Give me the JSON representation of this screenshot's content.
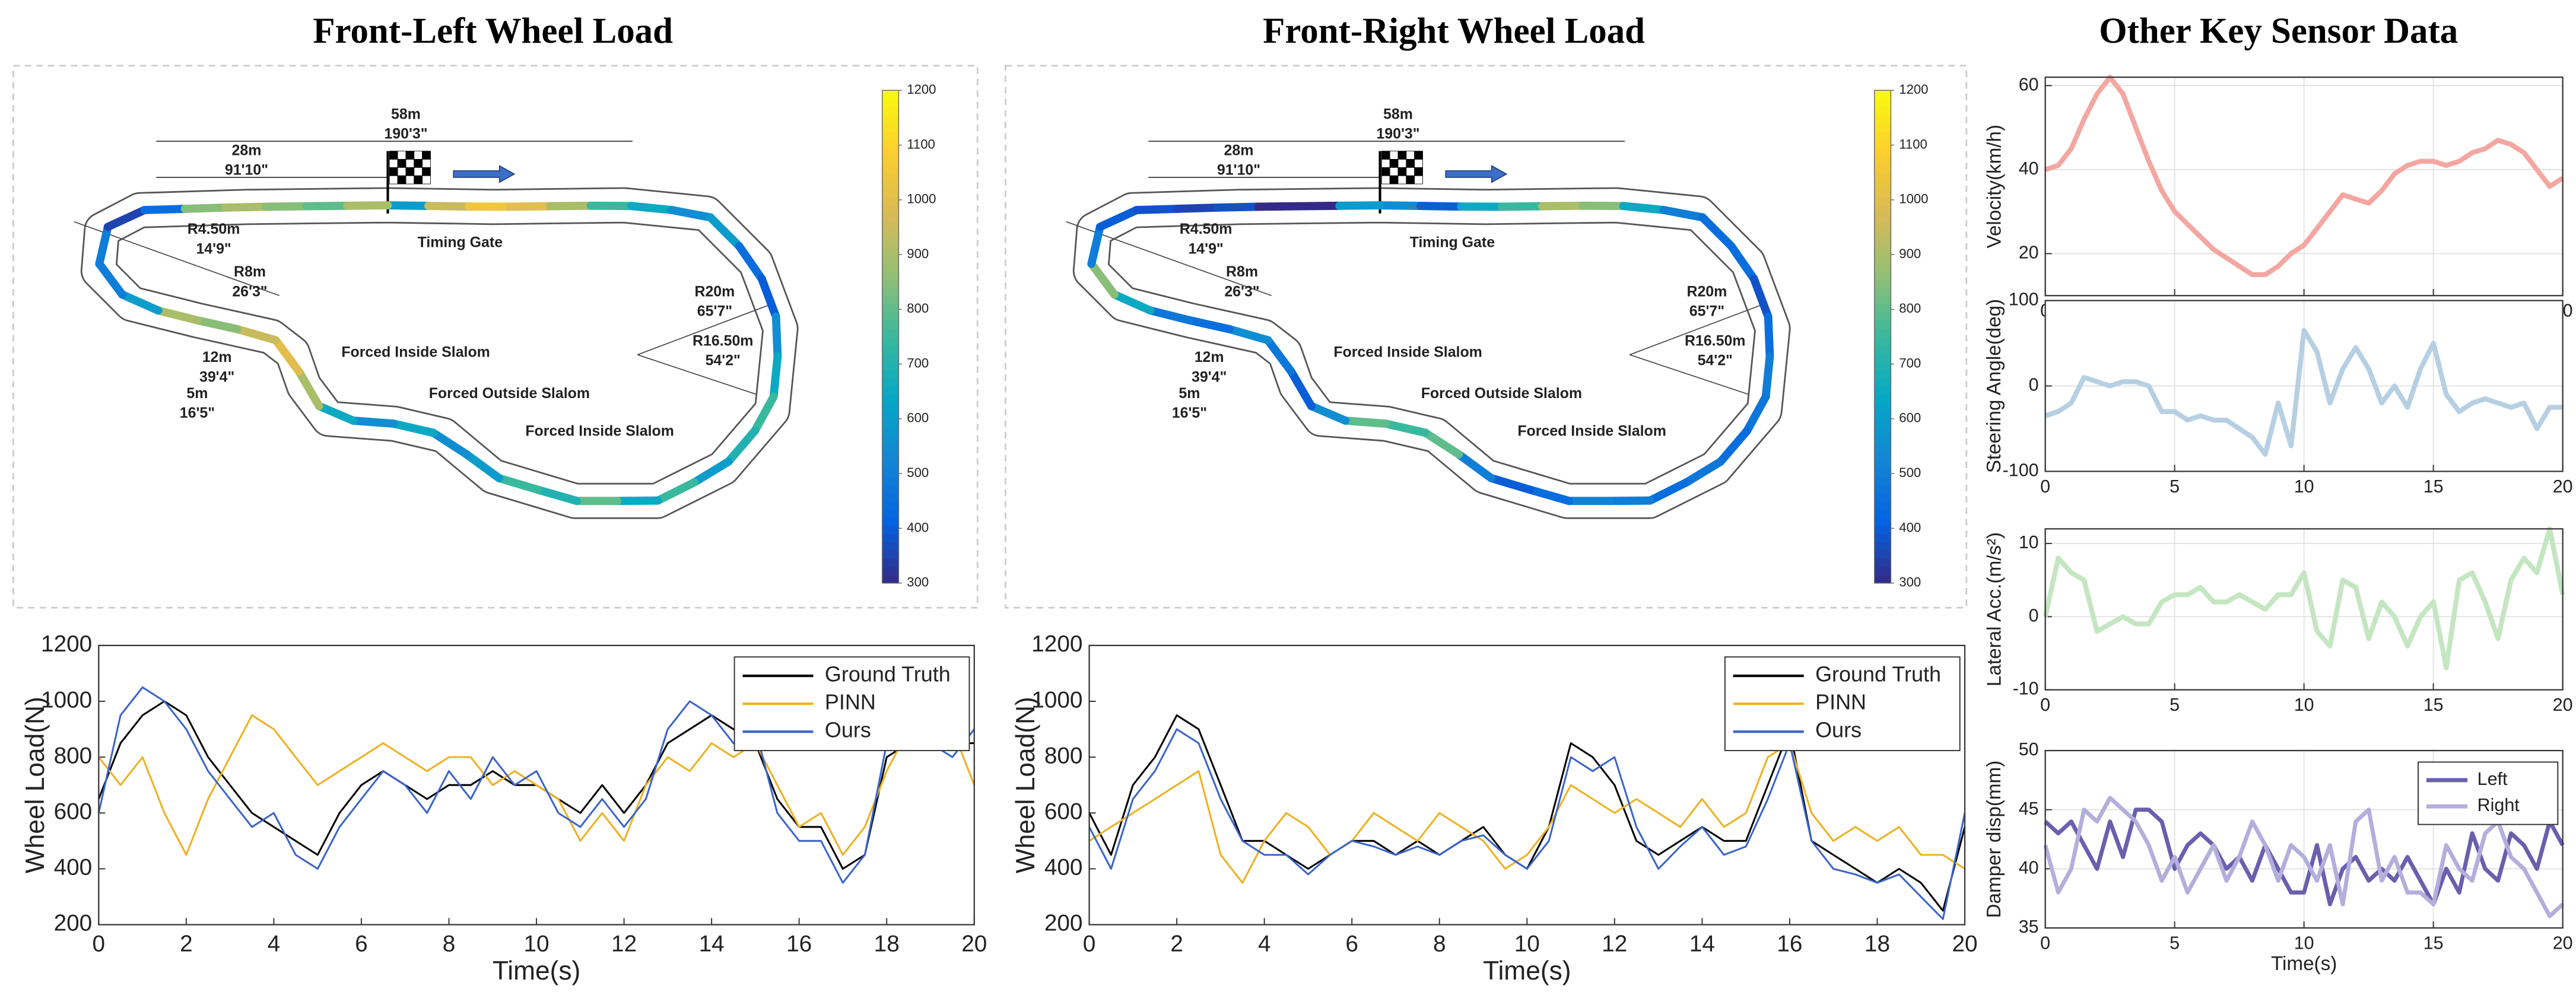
{
  "chart_data": [
    {
      "type": "track",
      "title": "Front-Left Wheel Load",
      "clim": [
        300,
        1200
      ],
      "cticks": [
        300,
        400,
        500,
        600,
        700,
        800,
        900,
        1000,
        1100,
        1200
      ],
      "colormap": [
        "#352a87",
        "#0363e1",
        "#1485d4",
        "#06a7c6",
        "#38b99e",
        "#92bf73",
        "#d9ba56",
        "#fcce2e",
        "#f9fb0e"
      ],
      "annotations": [
        "58m",
        "190'3\"",
        "28m",
        "91'10\"",
        "Timing Gate",
        "R4.50m",
        "14'9\"",
        "R8m",
        "26'3\"",
        "R20m",
        "65'7\"",
        "R16.50m",
        "54'2\"",
        "Forced Inside Slalom",
        "Forced Outside Slalom",
        "Forced Inside Slalom",
        "12m",
        "39'4\"",
        "5m",
        "16'5\""
      ]
    },
    {
      "type": "track",
      "title": "Front-Right Wheel Load",
      "clim": [
        300,
        1200
      ],
      "cticks": [
        300,
        400,
        500,
        600,
        700,
        800,
        900,
        1000,
        1100,
        1200
      ],
      "colormap": [
        "#352a87",
        "#0363e1",
        "#1485d4",
        "#06a7c6",
        "#38b99e",
        "#92bf73",
        "#d9ba56",
        "#fcce2e",
        "#f9fb0e"
      ],
      "annotations": [
        "58m",
        "190'3\"",
        "28m",
        "91'10\"",
        "Timing Gate",
        "R4.50m",
        "14'9\"",
        "R8m",
        "26'3\"",
        "R20m",
        "65'7\"",
        "R16.50m",
        "54'2\"",
        "Forced Inside Slalom",
        "Forced Outside Slalom",
        "Forced Inside Slalom",
        "12m",
        "39'4\"",
        "5m",
        "16'5\""
      ]
    },
    {
      "type": "line",
      "xlabel": "Time(s)",
      "ylabel": "Wheel Load(N)",
      "xlim": [
        0,
        20
      ],
      "ylim": [
        200,
        1200
      ],
      "xticks": [
        0,
        2,
        4,
        6,
        8,
        10,
        12,
        14,
        16,
        18,
        20
      ],
      "yticks": [
        200,
        400,
        600,
        800,
        1000,
        1200
      ],
      "grid": false,
      "legend": "upper right",
      "line_width": 1.1,
      "x": [
        0,
        0.5,
        1,
        1.5,
        2,
        2.5,
        3,
        3.5,
        4,
        4.5,
        5,
        5.5,
        6,
        6.5,
        7,
        7.5,
        8,
        8.5,
        9,
        9.5,
        10,
        10.5,
        11,
        11.5,
        12,
        12.5,
        13,
        13.5,
        14,
        14.5,
        15,
        15.5,
        16,
        16.5,
        17,
        17.5,
        18,
        18.5,
        19,
        19.5,
        20
      ],
      "series": [
        {
          "name": "Ground Truth",
          "color": "#000000",
          "values": [
            650,
            850,
            950,
            1000,
            950,
            800,
            700,
            600,
            550,
            500,
            450,
            600,
            700,
            750,
            700,
            650,
            700,
            700,
            750,
            700,
            700,
            650,
            600,
            700,
            600,
            700,
            850,
            900,
            950,
            900,
            850,
            650,
            550,
            550,
            400,
            450,
            800,
            850,
            850,
            850,
            850
          ]
        },
        {
          "name": "PINN",
          "color": "#edb120",
          "values": [
            800,
            700,
            800,
            600,
            450,
            650,
            800,
            950,
            900,
            800,
            700,
            750,
            800,
            850,
            800,
            750,
            800,
            800,
            700,
            750,
            700,
            650,
            500,
            600,
            500,
            700,
            800,
            750,
            850,
            800,
            850,
            700,
            550,
            600,
            450,
            550,
            750,
            900,
            850,
            900,
            700
          ]
        },
        {
          "name": "Ours",
          "color": "#3a65c8",
          "values": [
            600,
            950,
            1050,
            1000,
            900,
            750,
            650,
            550,
            600,
            450,
            400,
            550,
            650,
            750,
            700,
            600,
            750,
            650,
            800,
            700,
            750,
            600,
            550,
            650,
            550,
            650,
            900,
            1000,
            950,
            850,
            900,
            600,
            500,
            500,
            350,
            450,
            850,
            900,
            850,
            800,
            900
          ]
        }
      ]
    },
    {
      "type": "line",
      "xlabel": "Time(s)",
      "ylabel": "Wheel Load(N)",
      "xlim": [
        0,
        20
      ],
      "ylim": [
        200,
        1200
      ],
      "xticks": [
        0,
        2,
        4,
        6,
        8,
        10,
        12,
        14,
        16,
        18,
        20
      ],
      "yticks": [
        200,
        400,
        600,
        800,
        1000,
        1200
      ],
      "grid": false,
      "legend": "upper right",
      "line_width": 1.1,
      "x": [
        0,
        0.5,
        1,
        1.5,
        2,
        2.5,
        3,
        3.5,
        4,
        4.5,
        5,
        5.5,
        6,
        6.5,
        7,
        7.5,
        8,
        8.5,
        9,
        9.5,
        10,
        10.5,
        11,
        11.5,
        12,
        12.5,
        13,
        13.5,
        14,
        14.5,
        15,
        15.5,
        16,
        16.5,
        17,
        17.5,
        18,
        18.5,
        19,
        19.5,
        20
      ],
      "series": [
        {
          "name": "Ground Truth",
          "color": "#000000",
          "values": [
            600,
            450,
            700,
            800,
            950,
            900,
            700,
            500,
            500,
            450,
            400,
            450,
            500,
            500,
            450,
            500,
            450,
            500,
            550,
            450,
            400,
            550,
            850,
            800,
            700,
            500,
            450,
            500,
            550,
            500,
            500,
            700,
            900,
            500,
            450,
            400,
            350,
            400,
            350,
            250,
            550
          ]
        },
        {
          "name": "PINN",
          "color": "#edb120",
          "values": [
            500,
            550,
            600,
            650,
            700,
            750,
            450,
            350,
            500,
            600,
            550,
            450,
            500,
            600,
            550,
            500,
            600,
            550,
            500,
            400,
            450,
            550,
            700,
            650,
            600,
            650,
            600,
            550,
            650,
            550,
            600,
            800,
            850,
            600,
            500,
            550,
            500,
            550,
            450,
            450,
            400
          ]
        },
        {
          "name": "Ours",
          "color": "#3a65c8",
          "values": [
            550,
            400,
            650,
            750,
            900,
            850,
            650,
            500,
            450,
            450,
            380,
            450,
            500,
            480,
            450,
            480,
            450,
            500,
            520,
            450,
            400,
            500,
            800,
            750,
            800,
            550,
            400,
            480,
            550,
            450,
            480,
            650,
            850,
            500,
            400,
            380,
            350,
            380,
            300,
            220,
            600
          ]
        }
      ]
    },
    {
      "type": "line",
      "title": "Other Key Sensor Data",
      "ylabel": "Velocity(km/h)",
      "xlim": [
        0,
        20
      ],
      "ylim": [
        10,
        62
      ],
      "xticks": [
        0,
        5,
        10,
        15,
        20
      ],
      "yticks": [
        20,
        40,
        60
      ],
      "grid": true,
      "line_width": 3,
      "x": [
        0,
        0.5,
        1,
        1.5,
        2,
        2.5,
        3,
        3.5,
        4,
        4.5,
        5,
        5.5,
        6,
        6.5,
        7,
        7.5,
        8,
        8.5,
        9,
        9.5,
        10,
        10.5,
        11,
        11.5,
        12,
        12.5,
        13,
        13.5,
        14,
        14.5,
        15,
        15.5,
        16,
        16.5,
        17,
        17.5,
        18,
        18.5,
        19,
        19.5,
        20
      ],
      "series": [
        {
          "color": "#f4a6a0",
          "values": [
            40,
            41,
            45,
            52,
            58,
            62,
            58,
            50,
            42,
            35,
            30,
            27,
            24,
            21,
            19,
            17,
            15,
            15,
            17,
            20,
            22,
            26,
            30,
            34,
            33,
            32,
            35,
            39,
            41,
            42,
            42,
            41,
            42,
            44,
            45,
            47,
            46,
            44,
            40,
            36,
            38
          ]
        }
      ]
    },
    {
      "type": "line",
      "ylabel": "Steering Angle(deg)",
      "xlim": [
        0,
        20
      ],
      "ylim": [
        -100,
        100
      ],
      "xticks": [
        0,
        5,
        10,
        15,
        20
      ],
      "yticks": [
        -100,
        0,
        100
      ],
      "grid": true,
      "line_width": 3,
      "x": [
        0,
        0.5,
        1,
        1.5,
        2,
        2.5,
        3,
        3.5,
        4,
        4.5,
        5,
        5.5,
        6,
        6.5,
        7,
        7.5,
        8,
        8.5,
        9,
        9.5,
        10,
        10.5,
        11,
        11.5,
        12,
        12.5,
        13,
        13.5,
        14,
        14.5,
        15,
        15.5,
        16,
        16.5,
        17,
        17.5,
        18,
        18.5,
        19,
        19.5,
        20
      ],
      "series": [
        {
          "color": "#b6cfe3",
          "values": [
            -35,
            -30,
            -20,
            10,
            5,
            0,
            5,
            5,
            0,
            -30,
            -30,
            -40,
            -35,
            -40,
            -40,
            -50,
            -60,
            -80,
            -20,
            -70,
            65,
            40,
            -20,
            20,
            45,
            20,
            -20,
            0,
            -25,
            20,
            50,
            -10,
            -30,
            -20,
            -15,
            -20,
            -25,
            -20,
            -50,
            -25,
            -25
          ]
        }
      ]
    },
    {
      "type": "line",
      "ylabel": "Lateral Acc.(m/s²)",
      "xlim": [
        0,
        20
      ],
      "ylim": [
        -10,
        12
      ],
      "xticks": [
        0,
        5,
        10,
        15,
        20
      ],
      "yticks": [
        -10,
        0,
        10
      ],
      "grid": true,
      "line_width": 3,
      "x": [
        0,
        0.5,
        1,
        1.5,
        2,
        2.5,
        3,
        3.5,
        4,
        4.5,
        5,
        5.5,
        6,
        6.5,
        7,
        7.5,
        8,
        8.5,
        9,
        9.5,
        10,
        10.5,
        11,
        11.5,
        12,
        12.5,
        13,
        13.5,
        14,
        14.5,
        15,
        15.5,
        16,
        16.5,
        17,
        17.5,
        18,
        18.5,
        19,
        19.5,
        20
      ],
      "series": [
        {
          "color": "#c4e6c1",
          "values": [
            0,
            8,
            6,
            5,
            -2,
            -1,
            0,
            -1,
            -1,
            2,
            3,
            3,
            4,
            2,
            2,
            3,
            2,
            1,
            3,
            3,
            6,
            -2,
            -4,
            5,
            4,
            -3,
            2,
            0,
            -4,
            0,
            2,
            -7,
            5,
            6,
            2,
            -3,
            5,
            8,
            6,
            12,
            3
          ]
        }
      ]
    },
    {
      "type": "line",
      "xlabel": "Time(s)",
      "ylabel": "Damper disp(mm)",
      "xlim": [
        0,
        20
      ],
      "ylim": [
        35,
        50
      ],
      "xticks": [
        0,
        5,
        10,
        15,
        20
      ],
      "yticks": [
        35,
        40,
        45,
        50
      ],
      "grid": true,
      "legend": "upper right",
      "line_width": 2.5,
      "x": [
        0,
        0.5,
        1,
        1.5,
        2,
        2.5,
        3,
        3.5,
        4,
        4.5,
        5,
        5.5,
        6,
        6.5,
        7,
        7.5,
        8,
        8.5,
        9,
        9.5,
        10,
        10.5,
        11,
        11.5,
        12,
        12.5,
        13,
        13.5,
        14,
        14.5,
        15,
        15.5,
        16,
        16.5,
        17,
        17.5,
        18,
        18.5,
        19,
        19.5,
        20
      ],
      "series": [
        {
          "name": "Left",
          "color": "#6a5fad",
          "values": [
            44,
            43,
            44,
            42,
            40,
            44,
            41,
            45,
            45,
            44,
            40,
            42,
            43,
            42,
            40,
            41,
            39,
            42,
            40,
            38,
            38,
            42,
            37,
            40,
            41,
            39,
            40,
            39,
            41,
            39,
            37,
            40,
            38,
            43,
            40,
            39,
            43,
            42,
            40,
            44,
            42
          ]
        },
        {
          "name": "Right",
          "color": "#b3aedb",
          "values": [
            42,
            38,
            40,
            45,
            44,
            46,
            45,
            44,
            42,
            39,
            41,
            38,
            40,
            42,
            39,
            41,
            44,
            42,
            39,
            42,
            41,
            39,
            42,
            37,
            44,
            45,
            39,
            41,
            38,
            38,
            37,
            42,
            40,
            39,
            43,
            44,
            41,
            40,
            38,
            36,
            37
          ]
        }
      ]
    }
  ]
}
